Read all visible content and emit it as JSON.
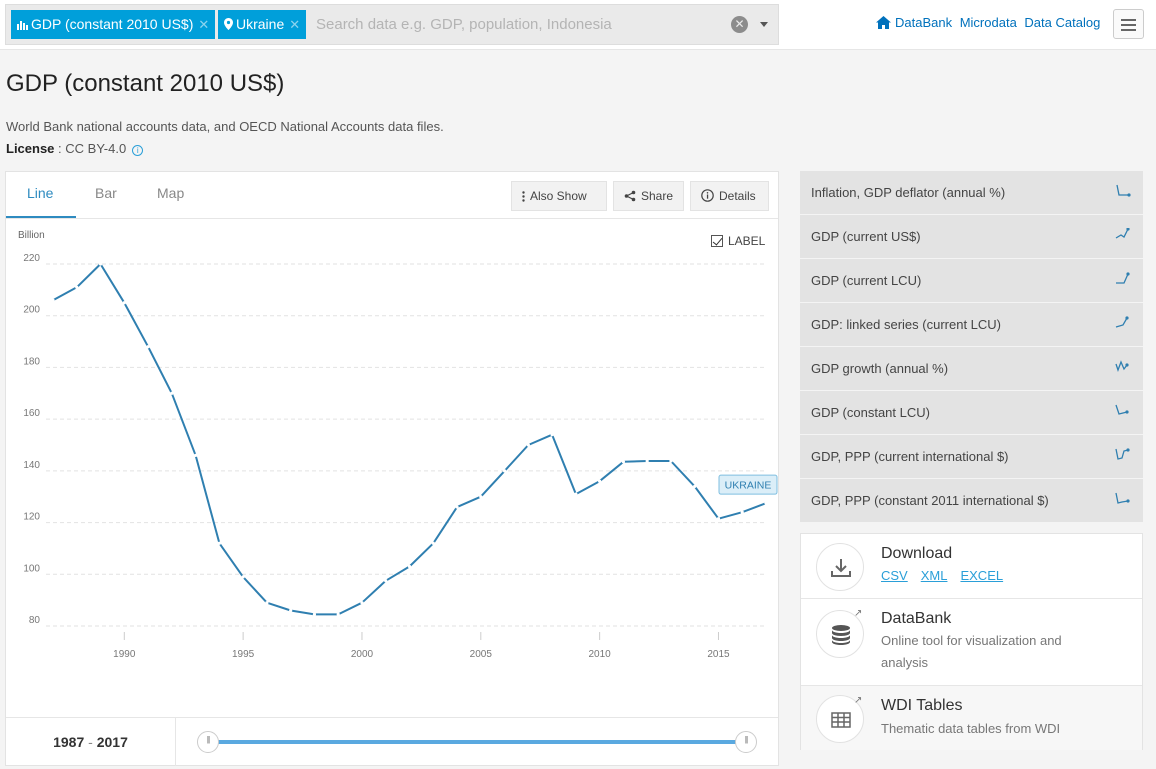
{
  "header": {
    "chips": [
      {
        "label": "GDP (constant 2010 US$)",
        "icon": "bar-chart-icon"
      },
      {
        "label": "Ukraine",
        "icon": "location-pin-icon"
      }
    ],
    "search_placeholder": "Search data e.g. GDP, population, Indonesia",
    "links": [
      "DataBank",
      "Microdata",
      "Data Catalog"
    ]
  },
  "page": {
    "title": "GDP (constant 2010 US$)",
    "source": "World Bank national accounts data, and OECD National Accounts data files.",
    "license_label": "License",
    "license_value": ": CC BY-4.0"
  },
  "chart_panel": {
    "tabs": [
      "Line",
      "Bar",
      "Map"
    ],
    "active_tab": "Line",
    "buttons": {
      "also_show": "Also Show",
      "share": "Share",
      "details": "Details"
    },
    "label_toggle": "LABEL",
    "range_start": "1987",
    "range_sep": "-",
    "range_end": "2017"
  },
  "chart_data": {
    "type": "line",
    "ylabel": "Billion",
    "ylim": [
      80,
      220
    ],
    "yticks": [
      80,
      100,
      120,
      140,
      160,
      180,
      200,
      220
    ],
    "xticks": [
      1990,
      1995,
      2000,
      2005,
      2010,
      2015
    ],
    "grid": true,
    "series": [
      {
        "name": "UKRAINE",
        "color": "#2f7fb0",
        "x": [
          1987,
          1988,
          1989,
          1990,
          1991,
          1992,
          1993,
          1994,
          1995,
          1996,
          1997,
          1998,
          1999,
          2000,
          2001,
          2002,
          2003,
          2004,
          2005,
          2006,
          2007,
          2008,
          2009,
          2010,
          2011,
          2012,
          2013,
          2014,
          2015,
          2016,
          2017
        ],
        "values": [
          206,
          211,
          220,
          205,
          188,
          170,
          146,
          112,
          99,
          89,
          86,
          84.5,
          84.5,
          89,
          97.5,
          103,
          112,
          126,
          130,
          140,
          150,
          154,
          131,
          136,
          143.5,
          143.8,
          143.8,
          134,
          121.5,
          124,
          127.5
        ]
      }
    ]
  },
  "related": [
    {
      "label": "Inflation, GDP deflator (annual %)"
    },
    {
      "label": "GDP (current US$)"
    },
    {
      "label": "GDP (current LCU)"
    },
    {
      "label": "GDP: linked series (current LCU)"
    },
    {
      "label": "GDP growth (annual %)"
    },
    {
      "label": "GDP (constant LCU)"
    },
    {
      "label": "GDP, PPP (current international $)"
    },
    {
      "label": "GDP, PPP (constant 2011 international $)"
    }
  ],
  "actions": {
    "download": {
      "title": "Download",
      "links": [
        "CSV",
        "XML",
        "EXCEL"
      ]
    },
    "databank": {
      "title": "DataBank",
      "subtitle": "Online tool for visualization and analysis"
    },
    "wdi": {
      "title": "WDI Tables",
      "subtitle": "Thematic data tables from WDI"
    }
  },
  "colors": {
    "accent": "#009fda",
    "line": "#2f7fb0",
    "link": "#0071bc"
  }
}
